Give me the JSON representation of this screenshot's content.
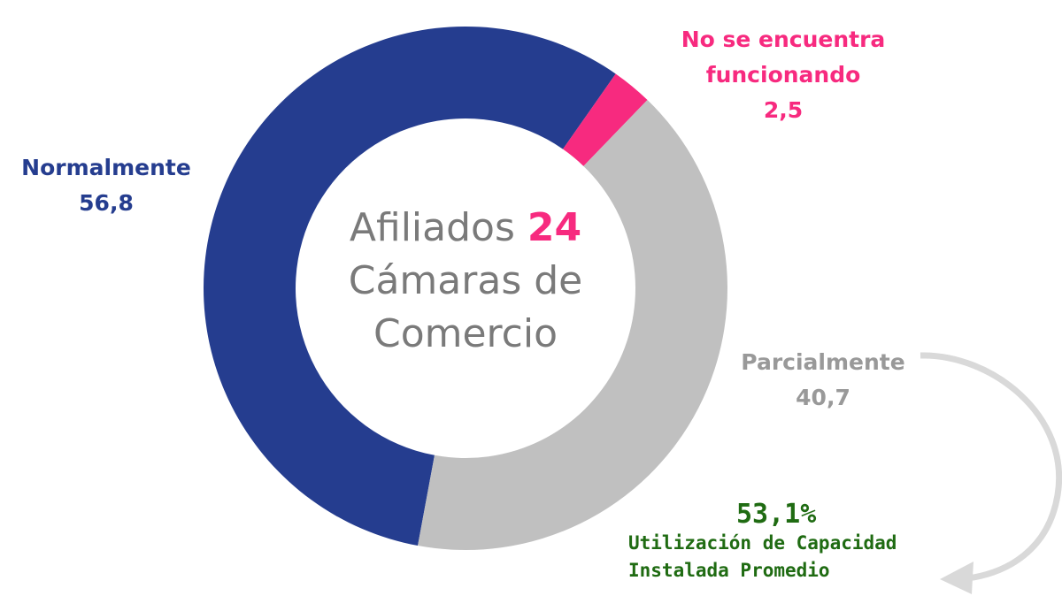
{
  "chart_data": {
    "type": "donut",
    "categories": [
      "Normalmente",
      "No se encuentra funcionando",
      "Parcialmente"
    ],
    "values": [
      56.8,
      2.5,
      40.7
    ],
    "value_labels": [
      "56,8",
      "2,5",
      "40,7"
    ],
    "colors": [
      "#253d8f",
      "#f72a7f",
      "#c0c0c0"
    ],
    "center_text": {
      "prefix": "Afiliados",
      "number": "24",
      "suffix": "Cámaras de Comercio"
    },
    "annotation": {
      "value": "53,1%",
      "text": "Utilización de Capacidad Instalada Promedio"
    }
  }
}
